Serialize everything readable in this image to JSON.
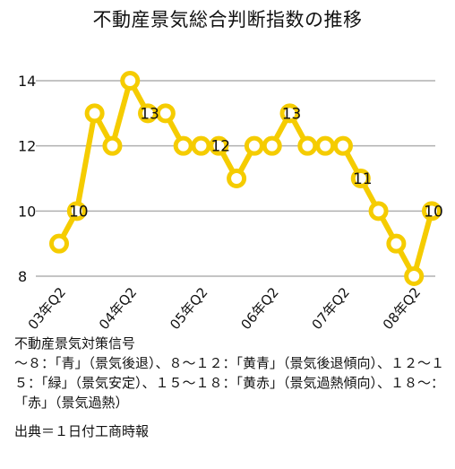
{
  "chart_data": {
    "type": "line",
    "title": "不動産景気総合判断指数の推移",
    "x_tick_labels": [
      "03年Q2",
      "04年Q2",
      "05年Q2",
      "06年Q2",
      "07年Q2",
      "08年Q2"
    ],
    "ylim": [
      8,
      14
    ],
    "y_ticks": [
      8,
      10,
      12,
      14
    ],
    "grid": "horizontal",
    "line_color": "#f5cc00",
    "marker_fill": "#ffffff",
    "values": [
      9,
      10,
      13,
      12,
      14,
      13,
      13,
      12,
      12,
      12,
      11,
      12,
      12,
      13,
      12,
      12,
      12,
      11,
      10,
      9,
      8,
      10
    ],
    "data_labels": [
      {
        "index": 1,
        "text": "10"
      },
      {
        "index": 5,
        "text": "13"
      },
      {
        "index": 9,
        "text": "12"
      },
      {
        "index": 13,
        "text": "13"
      },
      {
        "index": 17,
        "text": "11"
      },
      {
        "index": 21,
        "text": "10"
      }
    ]
  },
  "notes": {
    "legend_title": "不動産景気対策信号",
    "legend_line1": "〜８：「青」（景気後退）、８〜１２：「黄青」（景気後退傾向）、１２〜１５：「緑」（景気安定）、１５〜１８：「黄赤」（景気過熱傾向）、１８〜：「赤」（景気過熱）",
    "source": "出典＝１日付工商時報"
  }
}
